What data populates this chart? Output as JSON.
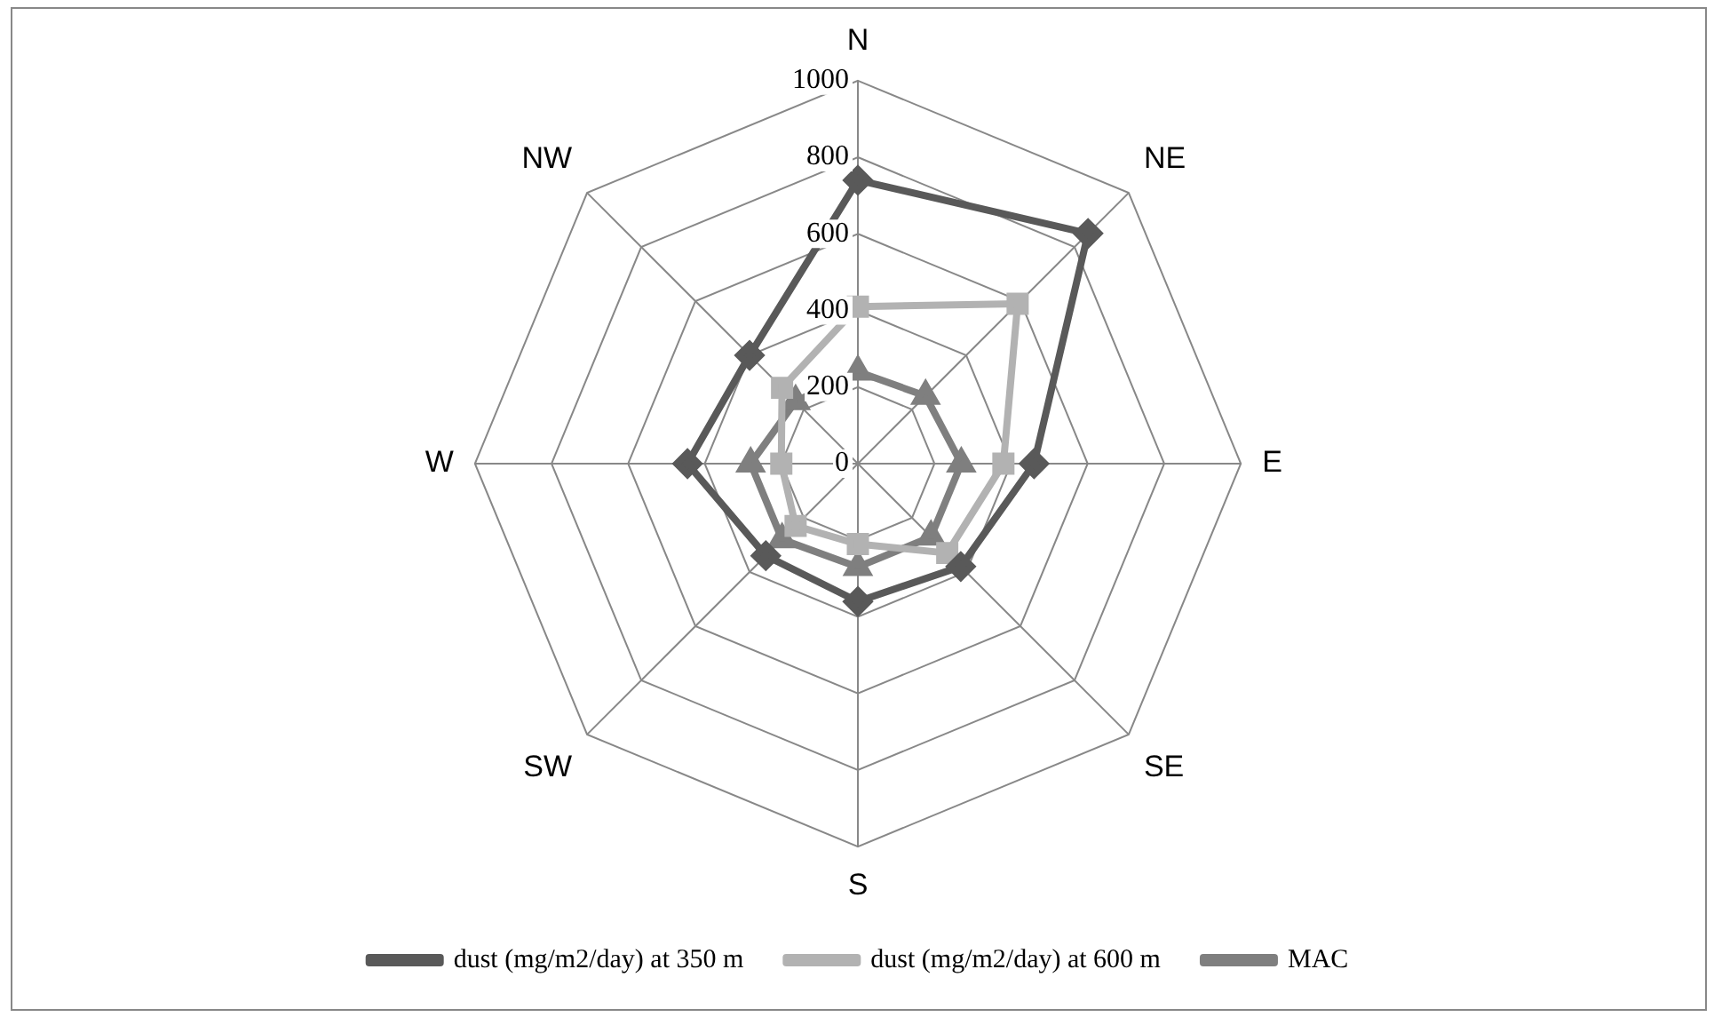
{
  "chart_data": {
    "type": "radar",
    "categories": [
      "N",
      "NE",
      "E",
      "SE",
      "S",
      "SW",
      "W",
      "NW"
    ],
    "series": [
      {
        "name": "dust (mg/m2/day) at 350 m",
        "color": "#595959",
        "marker": "diamond",
        "values": [
          740,
          850,
          460,
          380,
          360,
          340,
          445,
          400
        ]
      },
      {
        "name": "dust (mg/m2/day) at 600 m",
        "color": "#b2b2b2",
        "marker": "square",
        "values": [
          410,
          590,
          380,
          330,
          210,
          230,
          200,
          280
        ]
      },
      {
        "name": "MAC",
        "color": "#7f7f7f",
        "marker": "triangle",
        "values": [
          240,
          250,
          270,
          270,
          270,
          280,
          280,
          230
        ]
      }
    ],
    "ylim": [
      0,
      1000
    ],
    "yticks": [
      0,
      200,
      400,
      600,
      800,
      1000
    ],
    "grid": true,
    "legend": "bottom"
  }
}
